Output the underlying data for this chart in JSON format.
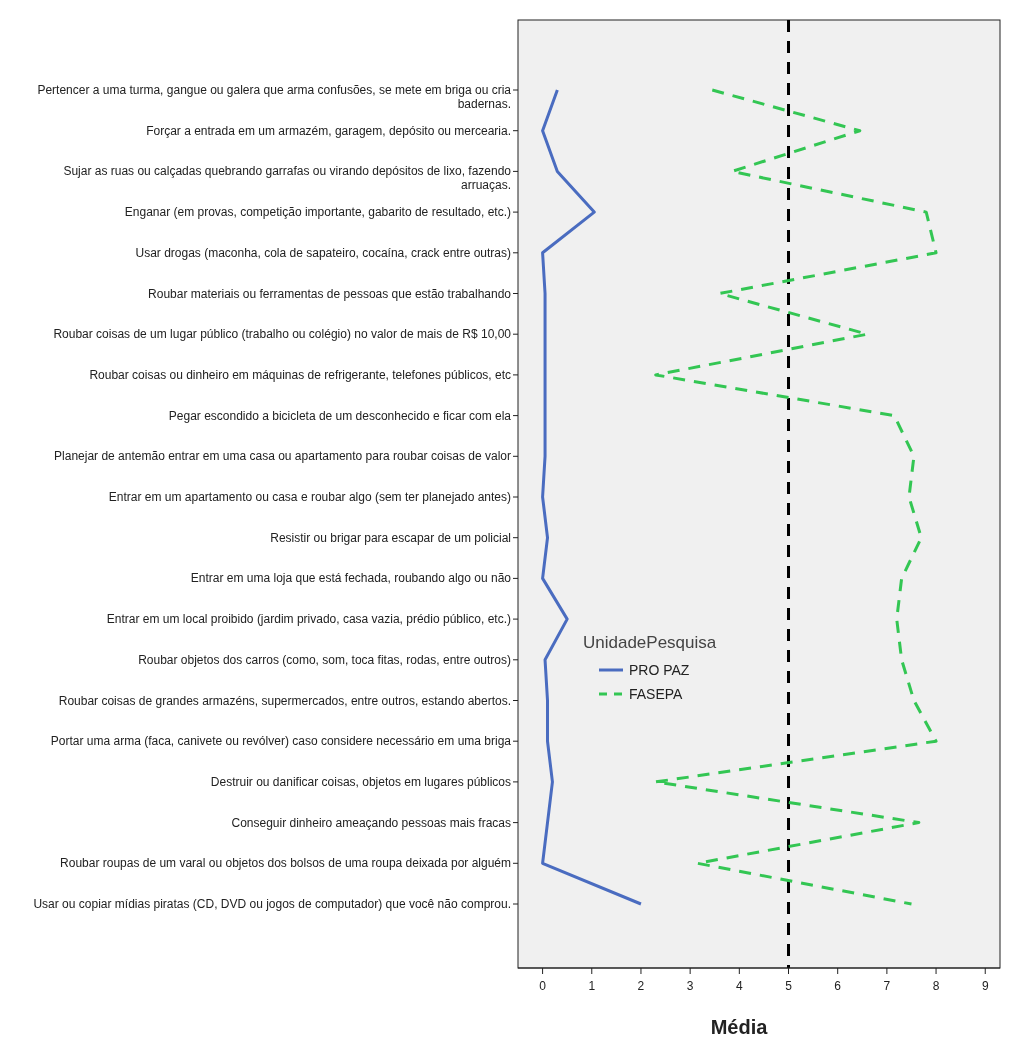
{
  "chart_data": {
    "type": "line",
    "orientation": "horizontal",
    "xlabel": "Média",
    "legend_title": "UnidadePesquisa",
    "legend": "left",
    "marker": "none",
    "grid": false,
    "categories": [
      "Pertencer a uma turma, gangue ou galera que arma confusões, se mete em briga ou cria badernas.",
      "Forçar a entrada em um armazém, garagem, depósito ou mercearia.",
      "Sujar as ruas ou calçadas quebrando garrafas ou virando depósitos de lixo, fazendo arruaças.",
      "Enganar (em provas, competição importante, gabarito de resultado, etc.)",
      "Usar drogas (maconha, cola de sapateiro, cocaína, crack entre outras)",
      "Roubar materiais ou ferramentas de pessoas que estão trabalhando",
      "Roubar coisas de um lugar público (trabalho ou colégio) no valor de mais de R$ 10,00",
      "Roubar coisas ou dinheiro em máquinas de refrigerante, telefones públicos, etc",
      "Pegar escondido a bicicleta de um desconhecido e ficar com ela",
      "Planejar de antemão entrar em uma casa ou apartamento para roubar coisas de valor",
      "Entrar em um apartamento ou casa e roubar algo (sem ter planejado antes)",
      "Resistir ou brigar para escapar de um policial",
      "Entrar em uma loja que está fechada, roubando algo ou não",
      "Entrar em um local proibido (jardim privado, casa vazia, prédio público, etc.)",
      "Roubar objetos dos carros (como, som, toca fitas, rodas, entre outros)",
      "Roubar coisas de grandes armazéns, supermercados, entre outros, estando abertos.",
      "Portar uma arma (faca, canivete ou revólver) caso considere necessário em uma briga",
      "Destruir ou danificar coisas, objetos em lugares públicos",
      "Conseguir dinheiro ameaçando pessoas mais fracas",
      "Roubar roupas de um varal ou objetos dos bolsos de uma roupa deixada por alguém",
      "Usar ou copiar mídias piratas (CD, DVD ou jogos de computador) que você não comprou."
    ],
    "series": [
      {
        "name": "PRO PAZ",
        "color": "#4a6cc0",
        "line_style": "solid",
        "values": [
          0.3,
          0.0,
          0.3,
          1.05,
          0.0,
          0.05,
          0.05,
          0.05,
          0.05,
          0.05,
          0.0,
          0.1,
          0.0,
          0.5,
          0.05,
          0.1,
          0.1,
          0.2,
          0.1,
          0.0,
          2.0
        ]
      },
      {
        "name": "FASEPA",
        "color": "#33c653",
        "line_style": "dashed",
        "values": [
          3.45,
          6.45,
          3.85,
          7.8,
          8.0,
          3.6,
          6.6,
          2.3,
          7.15,
          7.55,
          7.45,
          7.7,
          7.3,
          7.2,
          7.3,
          7.55,
          8.0,
          2.3,
          7.65,
          3.15,
          7.5
        ]
      }
    ],
    "xlim": [
      -0.5,
      9.3
    ],
    "xticks": [
      0,
      1,
      2,
      3,
      4,
      5,
      6,
      7,
      8,
      9
    ],
    "ref_lines": [
      {
        "axis": "x",
        "value": 5,
        "color": "#000000",
        "line_style": "dashed"
      }
    ]
  }
}
